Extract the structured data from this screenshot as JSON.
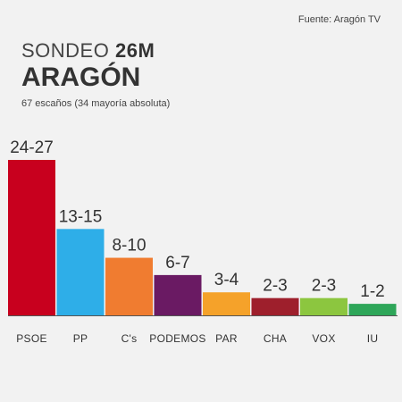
{
  "source": "Fuente: Aragón TV",
  "title": {
    "prefix": "SONDEO",
    "emphasis": "26M",
    "region": "ARAGÓN",
    "subtitle": "67 escaños (34 mayoría absoluta)"
  },
  "chart_data": {
    "type": "bar",
    "title": "SONDEO 26M ARAGÓN",
    "subtitle": "67 escaños (34 mayoría absoluta)",
    "categories": [
      "PSOE",
      "PP",
      "C's",
      "PODEMOS",
      "PAR",
      "CHA",
      "VOX",
      "IU"
    ],
    "ranges": [
      [
        24,
        27
      ],
      [
        13,
        15
      ],
      [
        8,
        10
      ],
      [
        6,
        7
      ],
      [
        3,
        4
      ],
      [
        2,
        3
      ],
      [
        2,
        3
      ],
      [
        1,
        2
      ]
    ],
    "labels": [
      "24-27",
      "13-15",
      "8-10",
      "6-7",
      "3-4",
      "2-3",
      "2-3",
      "1-2"
    ],
    "colors": [
      "#c8001e",
      "#2eaee8",
      "#f07c30",
      "#6a1a63",
      "#f5a22a",
      "#9e1f2c",
      "#8cc63f",
      "#2ea659"
    ],
    "xlabel": "",
    "ylabel": "",
    "ylim": [
      0,
      27
    ],
    "grid": false,
    "legend": "none"
  }
}
